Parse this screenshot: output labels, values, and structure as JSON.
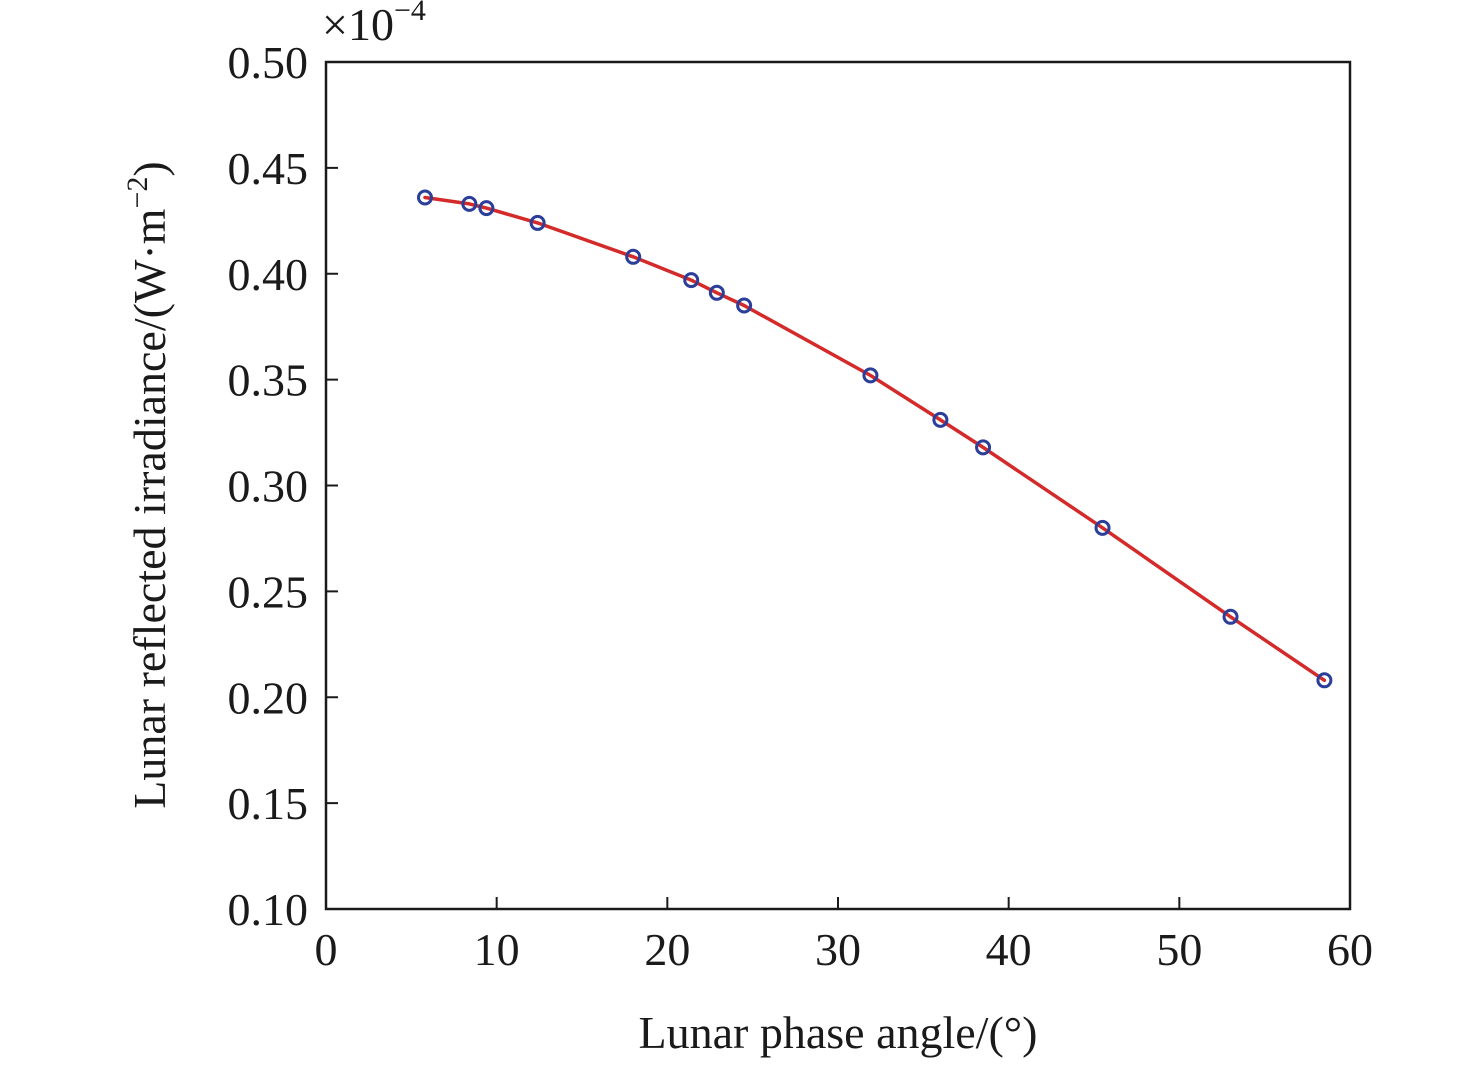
{
  "chart_data": {
    "type": "scatter",
    "title": "",
    "xlabel": "Lunar phase angle/(°)",
    "ylabel_main": "Lunar reflected irradiance/(W·m",
    "ylabel_sup": "−2",
    "ylabel_close": ")",
    "y_multiplier_base": "×10",
    "y_multiplier_exp": "−4",
    "xlim": [
      0,
      60
    ],
    "ylim": [
      0.1,
      0.5
    ],
    "x_ticks": [
      0,
      10,
      20,
      30,
      40,
      50,
      60
    ],
    "y_ticks": [
      "0.10",
      "0.15",
      "0.20",
      "0.25",
      "0.30",
      "0.35",
      "0.40",
      "0.45",
      "0.50"
    ],
    "grid": false,
    "series": [
      {
        "kind": "markers",
        "marker": "circle",
        "color": "#2b3f9a",
        "x": [
          5.8,
          8.4,
          9.4,
          12.4,
          18.0,
          21.4,
          22.9,
          24.5,
          31.9,
          36.0,
          38.5,
          45.5,
          53.0,
          58.5
        ],
        "y": [
          0.436,
          0.433,
          0.431,
          0.424,
          0.408,
          0.397,
          0.391,
          0.385,
          0.352,
          0.331,
          0.318,
          0.28,
          0.238,
          0.208
        ]
      },
      {
        "kind": "line",
        "color": "#d42a2a",
        "x": [
          5.8,
          8.4,
          9.4,
          12.4,
          18.0,
          21.4,
          22.9,
          24.5,
          31.9,
          36.0,
          38.5,
          45.5,
          53.0,
          58.5
        ],
        "y": [
          0.436,
          0.433,
          0.431,
          0.424,
          0.408,
          0.397,
          0.391,
          0.385,
          0.352,
          0.331,
          0.318,
          0.28,
          0.238,
          0.208
        ]
      }
    ]
  }
}
